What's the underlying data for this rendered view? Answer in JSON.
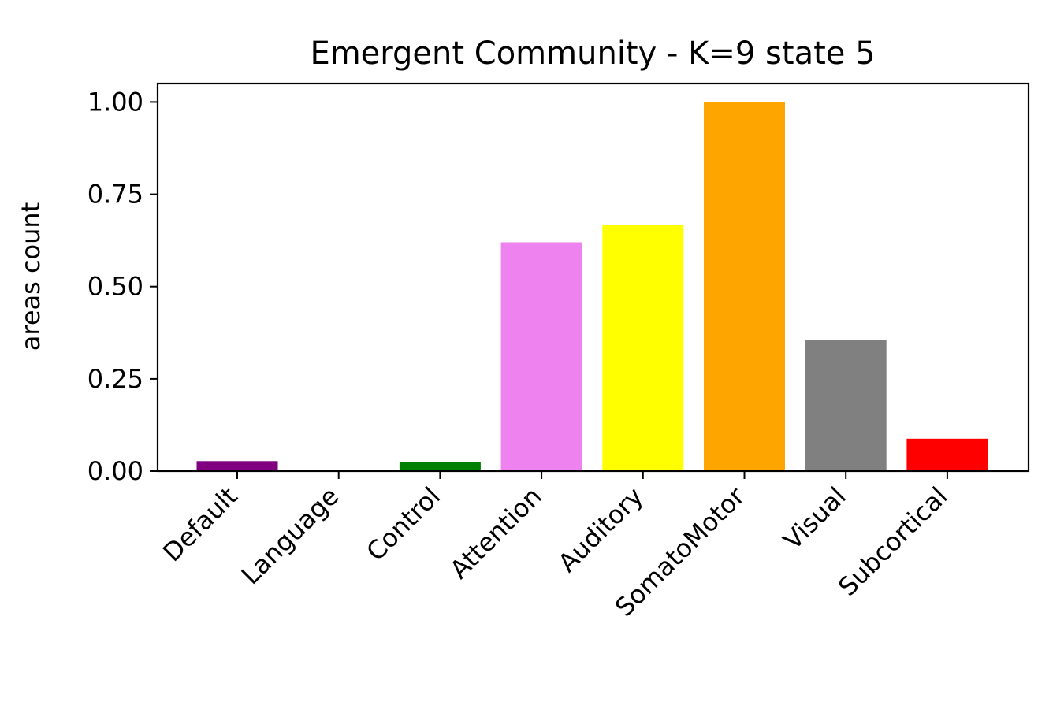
{
  "chart_data": {
    "type": "bar",
    "title": "Emergent Community - K=9 state 5",
    "xlabel": "",
    "ylabel": "areas count",
    "categories": [
      "Default",
      "Language",
      "Control",
      "Attention",
      "Auditory",
      "SomatoMotor",
      "Visual",
      "Subcortical"
    ],
    "values": [
      0.027,
      0.0,
      0.025,
      0.62,
      0.667,
      1.0,
      0.355,
      0.088
    ],
    "colors": [
      "#800080",
      "#ffffff",
      "#008000",
      "#ee82ee",
      "#ffff00",
      "#ffa500",
      "#808080",
      "#ff0000"
    ],
    "ylim": [
      0,
      1.05
    ],
    "yticks": [
      0.0,
      0.25,
      0.5,
      0.75,
      1.0
    ],
    "ytick_labels": [
      "0.00",
      "0.25",
      "0.50",
      "0.75",
      "1.00"
    ],
    "grid": false,
    "legend": "none"
  }
}
